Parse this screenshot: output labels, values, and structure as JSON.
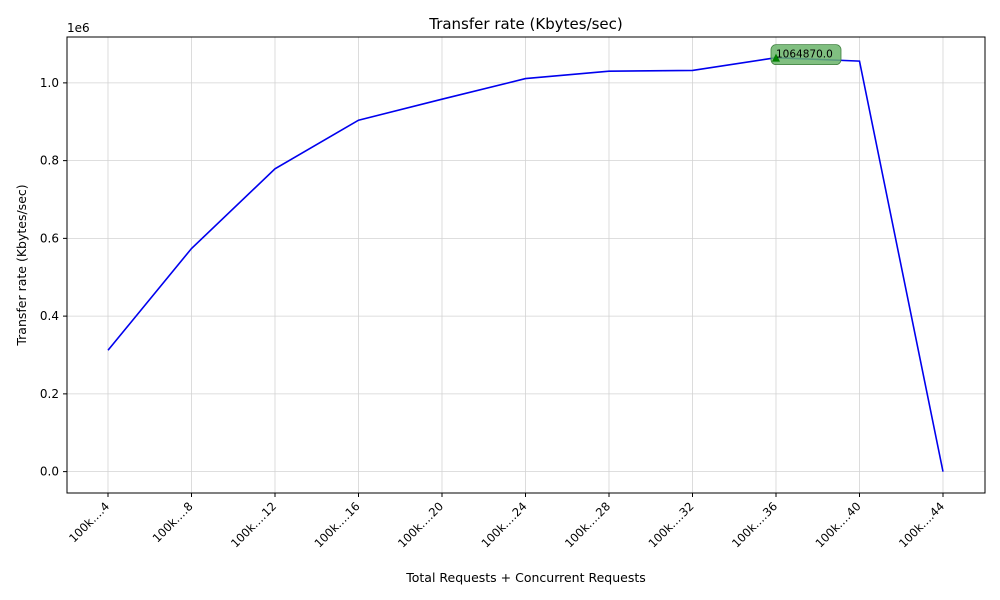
{
  "chart_data": {
    "type": "line",
    "title": "Transfer rate (Kbytes/sec)",
    "xlabel": "Total Requests + Concurrent Requests",
    "ylabel": "Transfer rate (Kbytes/sec)",
    "y_offset_label": "1e6",
    "categories": [
      "100k….4",
      "100k….8",
      "100k….12",
      "100k….16",
      "100k….20",
      "100k….24",
      "100k….28",
      "100k….32",
      "100k….36",
      "100k….40",
      "100k….44"
    ],
    "series": [
      {
        "name": "Transfer rate (Kbytes/sec)",
        "color": "#0000ee",
        "values": [
          312000,
          574000,
          779000,
          904000,
          958000,
          1011000,
          1030000,
          1032000,
          1064870,
          1056000,
          0
        ]
      }
    ],
    "ylim": [
      -55000,
      1118000
    ],
    "yticks": [
      0,
      200000,
      400000,
      600000,
      800000,
      1000000
    ],
    "ytick_labels": [
      "0.0",
      "0.2",
      "0.4",
      "0.6",
      "0.8",
      "1.0"
    ],
    "grid": true,
    "annotation": {
      "index": 8,
      "label": "1064870.0",
      "marker_color": "#008000",
      "box_color": "#6ab46a"
    }
  }
}
